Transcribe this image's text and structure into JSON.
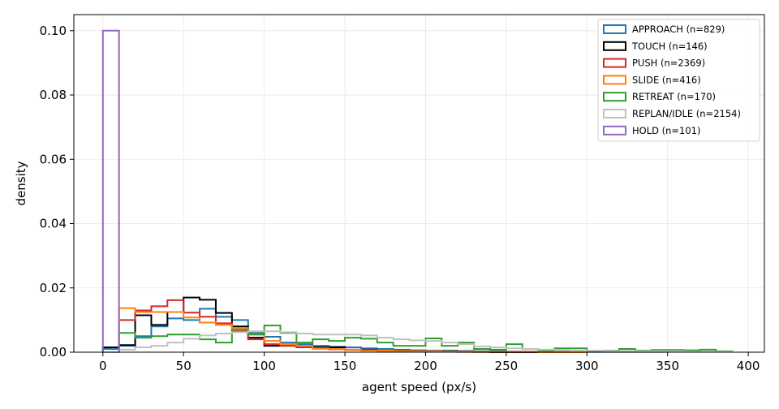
{
  "chart_data": {
    "type": "histogram",
    "xlabel": "agent speed (px/s)",
    "ylabel": "density",
    "xlim": [
      -18,
      410
    ],
    "ylim": [
      0,
      0.105
    ],
    "x_ticks": [
      0,
      50,
      100,
      150,
      200,
      250,
      300,
      350,
      400
    ],
    "y_ticks": [
      0.0,
      0.02,
      0.04,
      0.06,
      0.08,
      0.1
    ],
    "x_tick_labels": [
      "0",
      "50",
      "100",
      "150",
      "200",
      "250",
      "300",
      "350",
      "400"
    ],
    "y_tick_labels": [
      "0.00",
      "0.02",
      "0.04",
      "0.06",
      "0.08",
      "0.10"
    ],
    "grid": true,
    "legend_position": "top-right",
    "histtype": "step",
    "bin_width": 10,
    "series": [
      {
        "name": "APPROACH (n=829)",
        "color": "#1f77b4",
        "bin_start": 0,
        "values": [
          0.001,
          0.002,
          0.005,
          0.008,
          0.0105,
          0.01,
          0.0135,
          0.011,
          0.01,
          0.006,
          0.0048,
          0.003,
          0.0025,
          0.002,
          0.0017,
          0.0015,
          0.0012,
          0.001,
          0.0008,
          0.0006,
          0.0005,
          0.0005,
          0.0004,
          0.0003,
          0.0003,
          0.0002,
          0.0002,
          0.0002,
          0.0001,
          0.0001,
          0.0001,
          0.0001,
          0.0001,
          0.0001,
          0.0001
        ]
      },
      {
        "name": "TOUCH (n=146)",
        "color": "#000000",
        "bin_start": 0,
        "values": [
          0.0015,
          0.0022,
          0.0115,
          0.0085,
          0.0125,
          0.017,
          0.0163,
          0.0122,
          0.008,
          0.0045,
          0.002,
          0.002,
          0.0015,
          0.0015,
          0.0015,
          0.0008,
          0.0008,
          0.0005,
          0.0005,
          0.0004,
          0.0003,
          0.0003,
          0.0002,
          0.0001,
          0,
          0,
          0,
          0,
          0,
          0
        ]
      },
      {
        "name": "PUSH (n=2369)",
        "color": "#d62728",
        "bin_start": 0,
        "values": [
          0.0,
          0.01,
          0.013,
          0.0143,
          0.0162,
          0.0123,
          0.011,
          0.009,
          0.0065,
          0.004,
          0.0025,
          0.002,
          0.0015,
          0.0011,
          0.0009,
          0.0007,
          0.0005,
          0.0004,
          0.0003,
          0.0003,
          0.0002,
          0.0002,
          0.0001,
          0.0001,
          0.0001,
          0.0001,
          0.0001,
          0.0001,
          0.0001,
          0.0001
        ]
      },
      {
        "name": "SLIDE (n=416)",
        "color": "#ff7f0e",
        "bin_start": 0,
        "values": [
          0.0,
          0.0137,
          0.0125,
          0.0125,
          0.0125,
          0.0108,
          0.0092,
          0.0085,
          0.0075,
          0.0055,
          0.0035,
          0.0025,
          0.002,
          0.0012,
          0.001,
          0.0008,
          0.0006,
          0.0005,
          0.0004,
          0.0003,
          0.0003,
          0.0002,
          0.0002,
          0.0001,
          0.0001,
          0.0001,
          0.0001,
          0,
          0,
          0
        ]
      },
      {
        "name": "RETREAT (n=170)",
        "color": "#2ca02c",
        "bin_start": 0,
        "values": [
          0.0,
          0.006,
          0.0045,
          0.005,
          0.0055,
          0.0055,
          0.004,
          0.003,
          0.007,
          0.0055,
          0.0083,
          0.006,
          0.003,
          0.004,
          0.0035,
          0.0045,
          0.0042,
          0.003,
          0.002,
          0.002,
          0.0043,
          0.002,
          0.003,
          0.001,
          0.0008,
          0.0025,
          0.001,
          0.0005,
          0.0012,
          0.0012,
          0.0005,
          0.0005,
          0.001,
          0.0005,
          0.0007,
          0.0007,
          0.0006,
          0.0008,
          0.0003
        ]
      },
      {
        "name": "REPLAN/IDLE (n=2154)",
        "color": "#c0c0c0",
        "bin_start": 0,
        "values": [
          0.0,
          0.0008,
          0.0015,
          0.002,
          0.003,
          0.0042,
          0.0052,
          0.0058,
          0.0062,
          0.0065,
          0.0065,
          0.0062,
          0.0058,
          0.0055,
          0.0055,
          0.0055,
          0.0052,
          0.0045,
          0.004,
          0.0037,
          0.0035,
          0.003,
          0.0025,
          0.0018,
          0.0015,
          0.0012,
          0.001,
          0.0008,
          0.0006,
          0.0005,
          0.0005,
          0.0004,
          0.0004,
          0.0003,
          0.0003,
          0.0003,
          0.0002,
          0.0002,
          0.0002
        ]
      },
      {
        "name": "HOLD (n=101)",
        "color": "#9467bd",
        "bin_start": 0,
        "values": [
          0.1
        ]
      }
    ]
  }
}
